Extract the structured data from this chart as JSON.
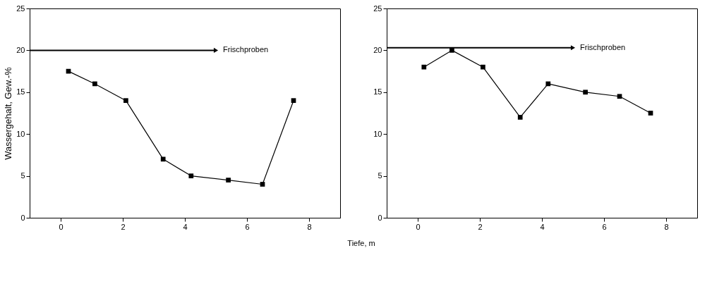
{
  "chart_data": [
    {
      "type": "line",
      "xlabel": "Tiefe, m",
      "ylabel": "Wassergehalt, Gew.-%",
      "x": [
        0.25,
        1.1,
        2.1,
        3.3,
        4.2,
        5.4,
        6.5,
        7.5
      ],
      "series": [
        {
          "color": "#000000",
          "values": [
            17.5,
            16,
            14,
            7,
            5,
            4.5,
            4,
            14
          ]
        }
      ],
      "xlim": [
        -1,
        9
      ],
      "xticks": [
        0,
        2,
        4,
        6,
        8
      ],
      "ylim": [
        0,
        25
      ],
      "yticks": [
        0,
        5,
        10,
        15,
        20,
        25
      ],
      "annotations": [
        {
          "text": "Frischproben",
          "x": 5,
          "y": 20
        }
      ],
      "marker": "square",
      "line_style": "solid",
      "grid": false
    },
    {
      "type": "line",
      "x": [
        0.2,
        1.1,
        2.1,
        3.3,
        4.2,
        5.4,
        6.5,
        7.5
      ],
      "series": [
        {
          "color": "#000000",
          "values": [
            18,
            20,
            18,
            12,
            16,
            15,
            14.5,
            12.5
          ]
        }
      ],
      "xlim": [
        -1,
        9
      ],
      "xticks": [
        0,
        2,
        4,
        6,
        8
      ],
      "ylim": [
        0,
        25
      ],
      "yticks": [
        0,
        5,
        10,
        15,
        20,
        25
      ],
      "annotations": [
        {
          "text": "Frischproben",
          "x": 5,
          "y": 20.3
        }
      ],
      "marker": "square",
      "line_style": "solid",
      "grid": false
    }
  ]
}
